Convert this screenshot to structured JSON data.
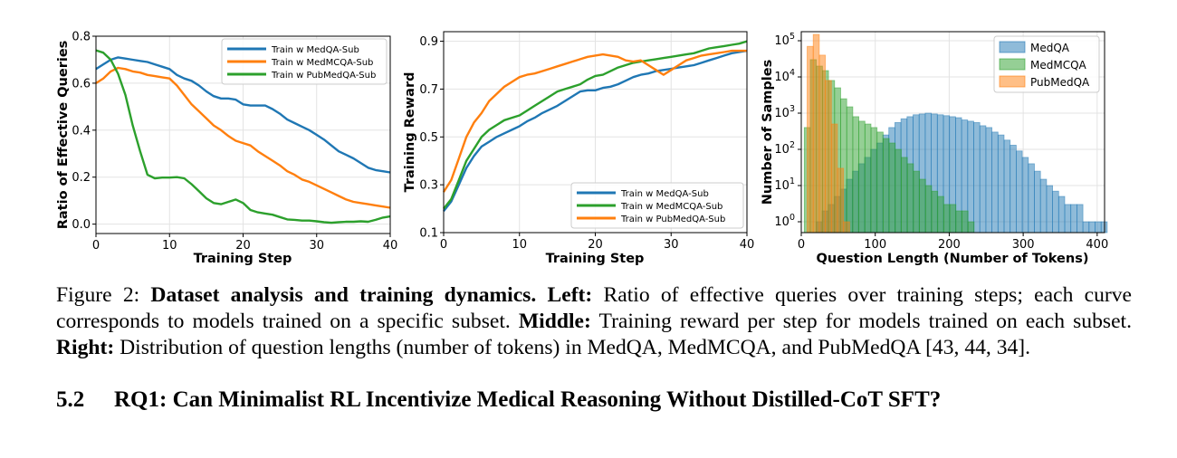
{
  "chart_data": [
    {
      "type": "line",
      "title": "",
      "xlabel": "Training Step",
      "ylabel": "Ratio of Effective Queries",
      "xlim": [
        0,
        40
      ],
      "ylim": [
        -0.04,
        0.8
      ],
      "xticks": [
        0,
        10,
        20,
        30,
        40
      ],
      "yticks": [
        0.0,
        0.2,
        0.4,
        0.6,
        0.8
      ],
      "ytick_labels": [
        "0.0",
        "0.2",
        "0.4",
        "0.6",
        "0.8"
      ],
      "grid": true,
      "legend": "top-right",
      "series": [
        {
          "name": "Train w MedQA-Sub",
          "color": "#1f77b4",
          "x": [
            0,
            1,
            2,
            3,
            4,
            5,
            6,
            7,
            8,
            9,
            10,
            11,
            12,
            13,
            14,
            15,
            16,
            17,
            18,
            19,
            20,
            21,
            22,
            23,
            24,
            25,
            26,
            27,
            28,
            29,
            30,
            31,
            32,
            33,
            34,
            35,
            36,
            37,
            38,
            39,
            40
          ],
          "y": [
            0.66,
            0.68,
            0.7,
            0.71,
            0.705,
            0.7,
            0.695,
            0.69,
            0.68,
            0.67,
            0.66,
            0.635,
            0.62,
            0.61,
            0.59,
            0.565,
            0.545,
            0.535,
            0.535,
            0.53,
            0.51,
            0.505,
            0.505,
            0.505,
            0.49,
            0.47,
            0.445,
            0.43,
            0.415,
            0.4,
            0.38,
            0.36,
            0.335,
            0.31,
            0.295,
            0.28,
            0.26,
            0.24,
            0.23,
            0.225,
            0.22
          ]
        },
        {
          "name": "Train w MedMCQA-Sub",
          "color": "#ff7f0e",
          "x": [
            0,
            1,
            2,
            3,
            4,
            5,
            6,
            7,
            8,
            9,
            10,
            11,
            12,
            13,
            14,
            15,
            16,
            17,
            18,
            19,
            20,
            21,
            22,
            23,
            24,
            25,
            26,
            27,
            28,
            29,
            30,
            31,
            32,
            33,
            34,
            35,
            36,
            37,
            38,
            39,
            40
          ],
          "y": [
            0.6,
            0.62,
            0.65,
            0.665,
            0.66,
            0.65,
            0.645,
            0.635,
            0.63,
            0.625,
            0.62,
            0.59,
            0.55,
            0.51,
            0.48,
            0.45,
            0.42,
            0.4,
            0.375,
            0.355,
            0.345,
            0.335,
            0.31,
            0.29,
            0.27,
            0.25,
            0.225,
            0.21,
            0.19,
            0.18,
            0.165,
            0.15,
            0.135,
            0.12,
            0.105,
            0.095,
            0.09,
            0.085,
            0.08,
            0.075,
            0.07
          ]
        },
        {
          "name": "Train w PubMedQA-Sub",
          "color": "#2ca02c",
          "x": [
            0,
            1,
            2,
            3,
            4,
            5,
            6,
            7,
            8,
            9,
            10,
            11,
            12,
            13,
            14,
            15,
            16,
            17,
            18,
            19,
            20,
            21,
            22,
            23,
            24,
            25,
            26,
            27,
            28,
            29,
            30,
            31,
            32,
            33,
            34,
            35,
            36,
            37,
            38,
            39,
            40
          ],
          "y": [
            0.74,
            0.73,
            0.7,
            0.64,
            0.55,
            0.42,
            0.31,
            0.21,
            0.195,
            0.198,
            0.198,
            0.2,
            0.195,
            0.17,
            0.14,
            0.11,
            0.09,
            0.085,
            0.095,
            0.105,
            0.09,
            0.06,
            0.05,
            0.045,
            0.04,
            0.03,
            0.02,
            0.018,
            0.015,
            0.015,
            0.012,
            0.008,
            0.006,
            0.008,
            0.01,
            0.01,
            0.012,
            0.01,
            0.018,
            0.028,
            0.033
          ]
        }
      ]
    },
    {
      "type": "line",
      "title": "",
      "xlabel": "Training Step",
      "ylabel": "Training Reward",
      "xlim": [
        0,
        40
      ],
      "ylim": [
        0.1,
        0.94
      ],
      "xticks": [
        0,
        10,
        20,
        30,
        40
      ],
      "yticks": [
        0.1,
        0.3,
        0.5,
        0.7,
        0.9
      ],
      "ytick_labels": [
        "0.1",
        "0.3",
        "0.5",
        "0.7",
        "0.9"
      ],
      "grid": true,
      "legend": "bottom-right",
      "series": [
        {
          "name": "Train w MedQA-Sub",
          "color": "#1f77b4",
          "x": [
            0,
            1,
            2,
            3,
            4,
            5,
            6,
            7,
            8,
            9,
            10,
            11,
            12,
            13,
            14,
            15,
            16,
            17,
            18,
            19,
            20,
            21,
            22,
            23,
            24,
            25,
            26,
            27,
            28,
            29,
            30,
            31,
            32,
            33,
            34,
            35,
            36,
            37,
            38,
            39,
            40
          ],
          "y": [
            0.19,
            0.23,
            0.3,
            0.37,
            0.42,
            0.46,
            0.48,
            0.5,
            0.515,
            0.53,
            0.545,
            0.565,
            0.58,
            0.6,
            0.615,
            0.63,
            0.65,
            0.67,
            0.69,
            0.695,
            0.695,
            0.705,
            0.71,
            0.72,
            0.735,
            0.75,
            0.76,
            0.765,
            0.775,
            0.78,
            0.785,
            0.79,
            0.795,
            0.8,
            0.81,
            0.82,
            0.83,
            0.84,
            0.85,
            0.855,
            0.86
          ]
        },
        {
          "name": "Train w MedMCQA-Sub",
          "color": "#2ca02c",
          "x": [
            0,
            1,
            2,
            3,
            4,
            5,
            6,
            7,
            8,
            9,
            10,
            11,
            12,
            13,
            14,
            15,
            16,
            17,
            18,
            19,
            20,
            21,
            22,
            23,
            24,
            25,
            26,
            27,
            28,
            29,
            30,
            31,
            32,
            33,
            34,
            35,
            36,
            37,
            38,
            39,
            40
          ],
          "y": [
            0.2,
            0.24,
            0.32,
            0.4,
            0.45,
            0.5,
            0.53,
            0.55,
            0.57,
            0.58,
            0.59,
            0.61,
            0.63,
            0.65,
            0.67,
            0.69,
            0.7,
            0.71,
            0.72,
            0.74,
            0.755,
            0.76,
            0.775,
            0.79,
            0.8,
            0.81,
            0.815,
            0.82,
            0.825,
            0.83,
            0.835,
            0.84,
            0.845,
            0.85,
            0.86,
            0.87,
            0.875,
            0.88,
            0.885,
            0.89,
            0.9
          ]
        },
        {
          "name": "Train w PubMedQA-Sub",
          "color": "#ff7f0e",
          "x": [
            0,
            1,
            2,
            3,
            4,
            5,
            6,
            7,
            8,
            9,
            10,
            11,
            12,
            13,
            14,
            15,
            16,
            17,
            18,
            19,
            20,
            21,
            22,
            23,
            24,
            25,
            26,
            27,
            28,
            29,
            30,
            31,
            32,
            33,
            34,
            35,
            36,
            37,
            38,
            39,
            40
          ],
          "y": [
            0.27,
            0.32,
            0.41,
            0.5,
            0.56,
            0.6,
            0.65,
            0.68,
            0.71,
            0.73,
            0.75,
            0.76,
            0.765,
            0.775,
            0.785,
            0.795,
            0.805,
            0.815,
            0.825,
            0.835,
            0.84,
            0.845,
            0.84,
            0.835,
            0.82,
            0.815,
            0.82,
            0.8,
            0.78,
            0.76,
            0.78,
            0.8,
            0.82,
            0.83,
            0.84,
            0.845,
            0.85,
            0.855,
            0.86,
            0.86,
            0.86
          ]
        }
      ]
    },
    {
      "type": "bar",
      "subtype": "histogram",
      "title": "",
      "xlabel": "Question Length (Number of Tokens)",
      "ylabel": "Number of Samples",
      "xlim": [
        0,
        410
      ],
      "yscale": "log",
      "ylim_exp": [
        -0.3,
        5.25
      ],
      "xticks": [
        0,
        100,
        200,
        300,
        400
      ],
      "yticks_exp": [
        0,
        1,
        2,
        3,
        4,
        5
      ],
      "ytick_base": "10",
      "grid": true,
      "legend": "top-right",
      "series": [
        {
          "name": "MedQA",
          "color": "#1f77b4",
          "opacity": 0.5,
          "bin_start": 20,
          "bin_width": 8.2,
          "counts": [
            1,
            2,
            3,
            5,
            8,
            15,
            25,
            40,
            60,
            100,
            150,
            250,
            400,
            550,
            700,
            800,
            900,
            950,
            1000,
            950,
            900,
            850,
            800,
            750,
            650,
            600,
            550,
            450,
            400,
            300,
            250,
            180,
            130,
            90,
            60,
            40,
            25,
            15,
            10,
            7,
            5,
            3,
            3,
            3,
            1,
            1,
            1,
            1
          ]
        },
        {
          "name": "MedMCQA",
          "color": "#2ca02c",
          "opacity": 0.5,
          "bin_start": 4,
          "bin_width": 8.2,
          "counts": [
            400,
            30000,
            20000,
            15000,
            8000,
            5000,
            2500,
            1500,
            800,
            600,
            500,
            400,
            300,
            200,
            150,
            100,
            60,
            40,
            25,
            15,
            10,
            7,
            5,
            3,
            3,
            2,
            2,
            1
          ]
        },
        {
          "name": "PubMedQA",
          "color": "#ff7f0e",
          "opacity": 0.5,
          "bin_start": 8,
          "bin_width": 8.2,
          "counts": [
            70000,
            150000,
            40000,
            8000,
            500,
            30,
            1
          ]
        }
      ]
    }
  ],
  "caption": {
    "figure_label": "Figure 2: ",
    "bold_title": "Dataset analysis and training dynamics.",
    "left_label": "Left:",
    "left_text": " Ratio of effective queries over training steps; each curve corresponds to models trained on a specific subset. ",
    "middle_label": "Middle:",
    "middle_text": " Training reward per step for models trained on each subset. ",
    "right_label": "Right:",
    "right_text": " Distribution of question lengths (number of tokens) in MedQA, MedMCQA, and PubMedQA [43, 44, 34]."
  },
  "section": {
    "number": "5.2",
    "title": "RQ1: Can Minimalist RL Incentivize Medical Reasoning Without Distilled-CoT SFT?"
  }
}
